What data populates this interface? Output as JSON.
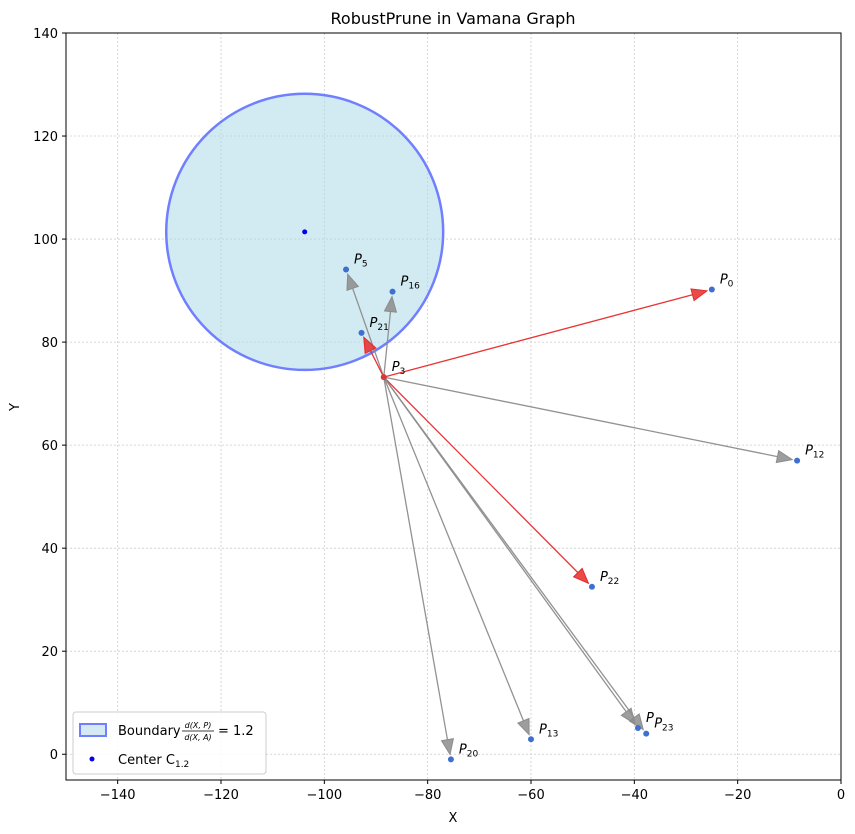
{
  "chart_data": {
    "type": "scatter",
    "title": "RobustPrune in Vamana Graph",
    "xlabel": "X",
    "ylabel": "Y",
    "xlim": [
      -150,
      0
    ],
    "ylim": [
      -5,
      140
    ],
    "xticks": [
      -140,
      -120,
      -100,
      -80,
      -60,
      -40,
      -20,
      0
    ],
    "yticks": [
      0,
      20,
      40,
      60,
      80,
      100,
      120,
      140
    ],
    "grid": true,
    "legend_position": "lower-left",
    "source_point": {
      "label": "P",
      "sub": "3",
      "x": -88.5,
      "y": 73.2
    },
    "points": [
      {
        "label": "P",
        "sub": "0",
        "x": -25.0,
        "y": 90.2,
        "edge": "kept",
        "color": "#e62a2a"
      },
      {
        "label": "P",
        "sub": "5",
        "x": -95.8,
        "y": 94.1,
        "edge": "pruned",
        "color": "#8c8c8c"
      },
      {
        "label": "P",
        "sub": "16",
        "x": -86.8,
        "y": 89.8,
        "edge": "pruned",
        "color": "#8c8c8c"
      },
      {
        "label": "P",
        "sub": "21",
        "x": -92.8,
        "y": 81.8,
        "edge": "kept",
        "color": "#e62a2a"
      },
      {
        "label": "P",
        "sub": "12",
        "x": -8.5,
        "y": 57.0,
        "edge": "pruned",
        "color": "#8c8c8c"
      },
      {
        "label": "P",
        "sub": "22",
        "x": -48.2,
        "y": 32.5,
        "edge": "kept",
        "color": "#e62a2a"
      },
      {
        "label": "P",
        "sub": "20",
        "x": -75.5,
        "y": -1.0,
        "edge": "pruned",
        "color": "#8c8c8c"
      },
      {
        "label": "P",
        "sub": "13",
        "x": -60.0,
        "y": 2.9,
        "edge": "pruned",
        "color": "#8c8c8c"
      },
      {
        "label": "P",
        "sub": "",
        "x": -39.3,
        "y": 5.1,
        "edge": "pruned",
        "color": "#8c8c8c"
      },
      {
        "label": "P",
        "sub": "23",
        "x": -37.7,
        "y": 4.0,
        "edge": "pruned",
        "color": "#8c8c8c"
      }
    ],
    "circle": {
      "cx": -103.8,
      "cy": 101.4,
      "r": 26.8,
      "fill": "#add8e6",
      "stroke": "#3f4fff"
    },
    "legend": [
      {
        "kind": "boundary",
        "text": "Boundary",
        "formula_num": "d(X, P)",
        "formula_den": "d(X, A)",
        "formula_val": "= 1.2"
      },
      {
        "kind": "center",
        "text": "Center C",
        "sub": "1.2"
      }
    ],
    "colors": {
      "kept": "#e62a2a",
      "pruned": "#8c8c8c",
      "point": "#3f6fd0",
      "center": "#0000ee"
    }
  }
}
